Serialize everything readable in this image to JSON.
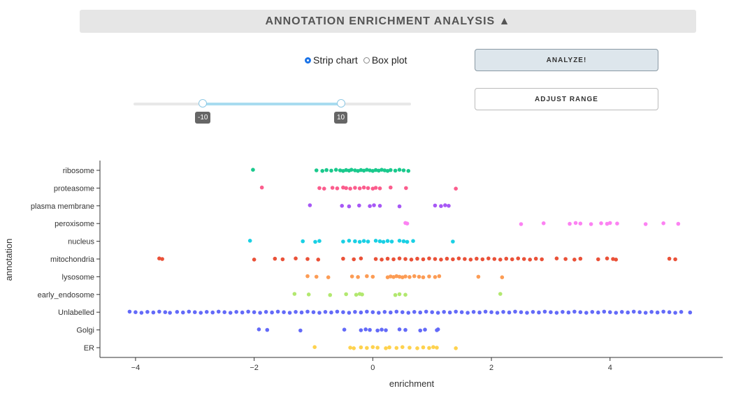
{
  "header": {
    "title": "ANNOTATION ENRICHMENT ANALYSIS ▲"
  },
  "plot_type": {
    "options": [
      {
        "label": "Strip chart",
        "selected": true
      },
      {
        "label": "Box plot",
        "selected": false
      }
    ]
  },
  "buttons": {
    "analyze": "ANALYZE!",
    "adjust": "ADJUST RANGE"
  },
  "range_slider": {
    "low_label": "-10",
    "high_label": "10",
    "low": -10,
    "high": 10
  },
  "chart_data": {
    "type": "scatter",
    "xlabel": "enrichment",
    "ylabel": "annotation",
    "xlim": [
      -4.6,
      5.9
    ],
    "xticks": [
      {
        "v": -4,
        "t": "−4"
      },
      {
        "v": -2,
        "t": "−2"
      },
      {
        "v": 0,
        "t": "0"
      },
      {
        "v": 2,
        "t": "2"
      },
      {
        "v": 4,
        "t": "4"
      }
    ],
    "grid": false,
    "series": [
      {
        "name": "ribosome",
        "color": "#1ac98d",
        "values": [
          -2.02,
          -0.95,
          -0.85,
          -0.78,
          -0.7,
          -0.62,
          -0.55,
          -0.5,
          -0.45,
          -0.4,
          -0.36,
          -0.3,
          -0.25,
          -0.2,
          -0.15,
          -0.1,
          -0.05,
          0.0,
          0.05,
          0.1,
          0.15,
          0.2,
          0.25,
          0.3,
          0.38,
          0.45,
          0.52,
          0.6
        ]
      },
      {
        "name": "proteasome",
        "color": "#fb5d8d",
        "values": [
          -1.87,
          -0.9,
          -0.82,
          -0.68,
          -0.6,
          -0.5,
          -0.45,
          -0.38,
          -0.3,
          -0.22,
          -0.15,
          -0.08,
          0.0,
          0.05,
          0.12,
          0.3,
          0.56,
          1.4
        ]
      },
      {
        "name": "plasma membrane",
        "color": "#a758f5",
        "values": [
          -1.06,
          -0.52,
          -0.4,
          -0.23,
          -0.05,
          0.02,
          0.12,
          0.45,
          1.05,
          1.15,
          1.22,
          1.28
        ]
      },
      {
        "name": "peroxisome",
        "color": "#fc82f2",
        "values": [
          0.55,
          0.58,
          2.5,
          2.88,
          3.32,
          3.42,
          3.5,
          3.68,
          3.85,
          3.95,
          4.0,
          4.12,
          4.6,
          4.9,
          5.15
        ]
      },
      {
        "name": "nucleus",
        "color": "#1ad0e4",
        "values": [
          -2.07,
          -1.18,
          -0.97,
          -0.9,
          -0.5,
          -0.4,
          -0.3,
          -0.22,
          -0.15,
          -0.08,
          0.05,
          0.12,
          0.18,
          0.25,
          0.32,
          0.45,
          0.52,
          0.58,
          0.68,
          1.35
        ]
      },
      {
        "name": "mitochondria",
        "color": "#ea5138",
        "values": [
          -3.6,
          -3.55,
          -2.0,
          -1.65,
          -1.52,
          -1.3,
          -1.1,
          -0.92,
          -0.5,
          -0.32,
          -0.2,
          0.05,
          0.15,
          0.25,
          0.35,
          0.45,
          0.55,
          0.65,
          0.75,
          0.85,
          0.95,
          1.05,
          1.15,
          1.25,
          1.35,
          1.45,
          1.55,
          1.65,
          1.75,
          1.85,
          1.95,
          2.05,
          2.15,
          2.25,
          2.35,
          2.45,
          2.55,
          2.65,
          2.75,
          2.85,
          3.1,
          3.25,
          3.4,
          3.5,
          3.8,
          3.95,
          4.05,
          4.1,
          5.0,
          5.1
        ]
      },
      {
        "name": "lysosome",
        "color": "#fc9c55",
        "values": [
          -1.1,
          -0.95,
          -0.75,
          -0.35,
          -0.25,
          -0.1,
          0.0,
          0.25,
          0.3,
          0.35,
          0.4,
          0.45,
          0.5,
          0.55,
          0.62,
          0.7,
          0.78,
          0.85,
          0.95,
          1.05,
          1.12,
          1.78,
          2.18
        ]
      },
      {
        "name": "early_endosome",
        "color": "#b2e86f",
        "values": [
          -1.32,
          -1.08,
          -0.72,
          -0.45,
          -0.28,
          -0.22,
          -0.18,
          0.38,
          0.45,
          0.55,
          2.15
        ]
      },
      {
        "name": "Unlabelled",
        "color": "#636af8",
        "values": [
          -4.1,
          -4.0,
          -3.9,
          -3.8,
          -3.7,
          -3.6,
          -3.5,
          -3.42,
          -3.3,
          -3.2,
          -3.1,
          -3.0,
          -2.9,
          -2.8,
          -2.7,
          -2.6,
          -2.5,
          -2.4,
          -2.3,
          -2.2,
          -2.1,
          -2.0,
          -1.9,
          -1.8,
          -1.7,
          -1.6,
          -1.5,
          -1.4,
          -1.3,
          -1.2,
          -1.1,
          -1.0,
          -0.9,
          -0.8,
          -0.7,
          -0.6,
          -0.5,
          -0.4,
          -0.3,
          -0.2,
          -0.1,
          0.0,
          0.1,
          0.2,
          0.3,
          0.4,
          0.5,
          0.6,
          0.7,
          0.8,
          0.9,
          1.0,
          1.1,
          1.2,
          1.3,
          1.4,
          1.5,
          1.6,
          1.7,
          1.8,
          1.9,
          2.0,
          2.1,
          2.2,
          2.3,
          2.4,
          2.5,
          2.6,
          2.7,
          2.8,
          2.9,
          3.0,
          3.1,
          3.2,
          3.3,
          3.4,
          3.5,
          3.6,
          3.7,
          3.8,
          3.9,
          4.0,
          4.1,
          4.2,
          4.3,
          4.4,
          4.5,
          4.6,
          4.7,
          4.8,
          4.9,
          5.0,
          5.1,
          5.2,
          5.35
        ]
      },
      {
        "name": "Golgi",
        "color": "#636af8",
        "values": [
          -1.92,
          -1.78,
          -1.22,
          -0.48,
          -0.2,
          -0.12,
          -0.05,
          0.08,
          0.15,
          0.22,
          0.45,
          0.55,
          0.8,
          0.88,
          1.08,
          1.1
        ]
      },
      {
        "name": "ER",
        "color": "#fed24e",
        "values": [
          -0.98,
          -0.38,
          -0.32,
          -0.2,
          -0.1,
          0.0,
          0.08,
          0.22,
          0.28,
          0.4,
          0.5,
          0.62,
          0.75,
          0.85,
          0.95,
          1.02,
          1.08,
          1.4
        ]
      }
    ]
  }
}
